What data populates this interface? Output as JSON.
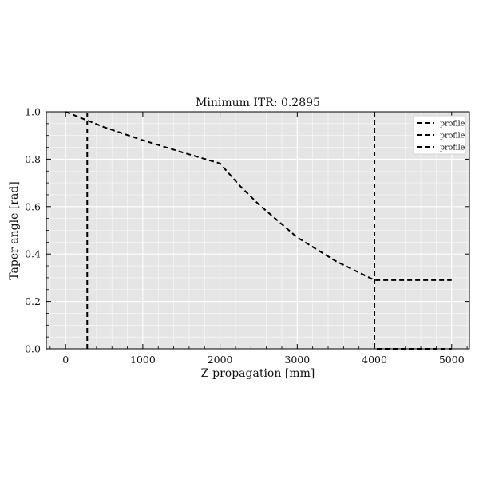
{
  "chart_data": {
    "type": "line",
    "title": "Minimum ITR: 0.2895",
    "xlabel": "Z-propagation [mm]",
    "ylabel": "Taper angle [rad]",
    "xlim": [
      -250,
      5230
    ],
    "ylim": [
      0.0,
      1.0
    ],
    "xticks": [
      0,
      1000,
      2000,
      3000,
      4000,
      5000
    ],
    "yticks": [
      0.0,
      0.2,
      0.4,
      0.6,
      0.8,
      1.0
    ],
    "xtick_labels": [
      "0",
      "1000",
      "2000",
      "3000",
      "4000",
      "5000"
    ],
    "ytick_labels": [
      "0.0",
      "0.2",
      "0.4",
      "0.6",
      "0.8",
      "1.0"
    ],
    "grid": true,
    "legend_position": "top-right",
    "colors": {
      "plot_background": "#e5e5e5",
      "grid": "#ffffff",
      "line": "#000000"
    },
    "series": [
      {
        "name": "profile",
        "style": "dashed",
        "x": [
          0,
          500,
          1000,
          1500,
          2000,
          2250,
          2500,
          3000,
          3500,
          4000,
          4500,
          5000
        ],
        "y": [
          1.0,
          0.935,
          0.88,
          0.83,
          0.782,
          0.69,
          0.61,
          0.47,
          0.37,
          0.29,
          0.29,
          0.29
        ]
      },
      {
        "name": "profile",
        "style": "dashed",
        "x": [
          280,
          280
        ],
        "y": [
          0.0,
          1.0
        ]
      },
      {
        "name": "profile",
        "style": "dashed",
        "x": [
          4000,
          4000,
          5000
        ],
        "y": [
          1.0,
          0.0,
          0.0
        ]
      }
    ]
  }
}
